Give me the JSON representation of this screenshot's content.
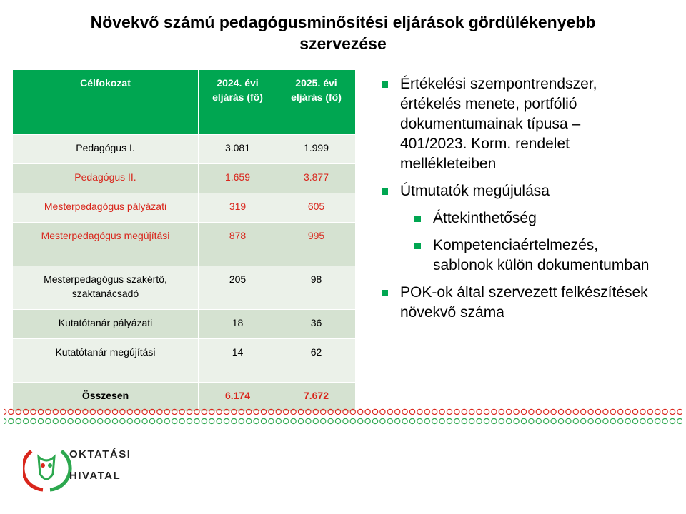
{
  "title": "Növekvő számú pedagógusminősítési eljárások gördülékenyebb szervezése",
  "table": {
    "header": [
      "Célfokozat",
      "2024. évi eljárás (fő)",
      "2025. évi eljárás (fő)"
    ],
    "rows": [
      [
        "Pedagógus I.",
        "3.081",
        "1.999"
      ],
      [
        "Pedagógus II.",
        "1.659",
        "3.877"
      ],
      [
        "Mesterpedagógus pályázati",
        "319",
        "605"
      ],
      [
        "Mesterpedagógus megújítási",
        "878",
        "995"
      ],
      [
        "Mesterpedagógus szakértő, szaktanácsadó",
        "205",
        "98"
      ],
      [
        "Kutatótanár pályázati",
        "18",
        "36"
      ],
      [
        "Kutatótanár megújítási",
        "14",
        "62"
      ],
      [
        "Összesen",
        "6.174",
        "7.672"
      ]
    ]
  },
  "bullets": [
    {
      "text": "Értékelési szempontrendszer, értékelés menete, portfólió dokumentumainak típusa – 401/2023. Korm. rendelet mellékleteiben",
      "children": []
    },
    {
      "text": "Útmutatók megújulása",
      "children": [
        "Áttekinthetőség",
        "Kompetenciaértelmezés, sablonok külön dokumentumban"
      ]
    },
    {
      "text": "POK-ok által szervezett felkészítések növekvő száma",
      "children": []
    }
  ],
  "logo": {
    "line1": "OKTATÁSI",
    "line2": "HIVATAL"
  }
}
